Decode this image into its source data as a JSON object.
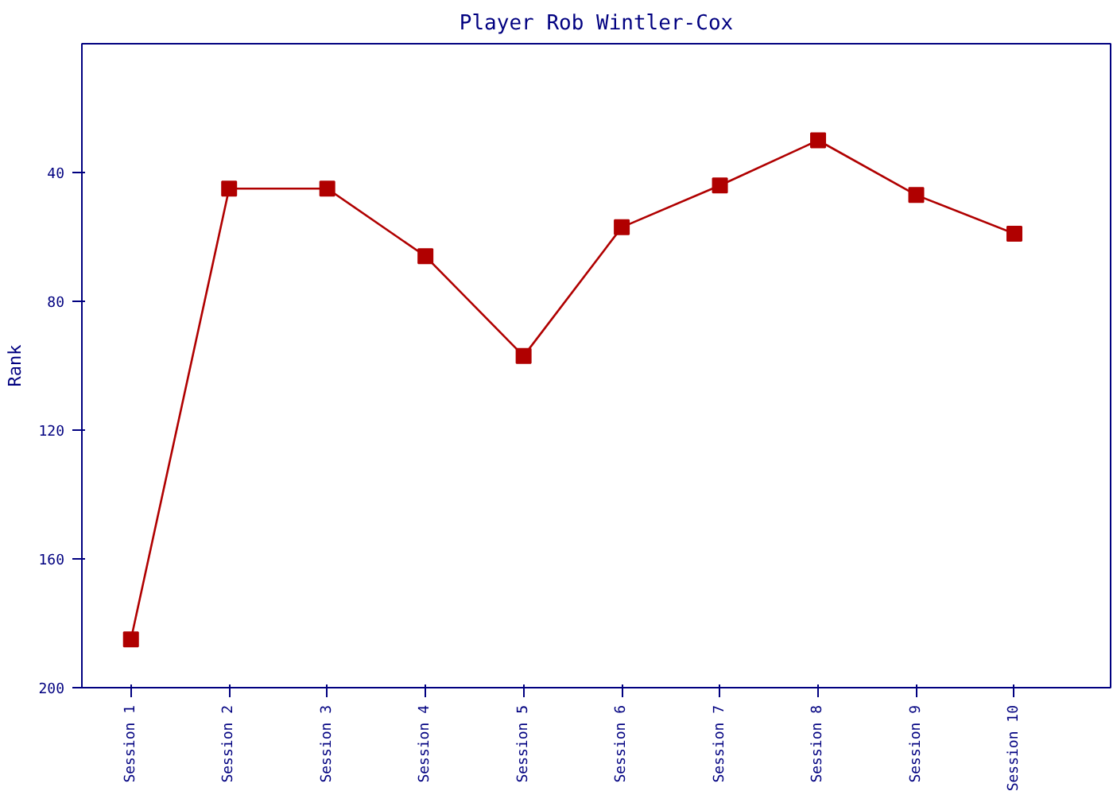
{
  "chart_data": {
    "type": "line",
    "title": "Player Rob Wintler-Cox",
    "ylabel": "Rank",
    "categories": [
      "Session 1",
      "Session 2",
      "Session 3",
      "Session 4",
      "Session 5",
      "Session 6",
      "Session 7",
      "Session 8",
      "Session 9",
      "Session 10"
    ],
    "series": [
      {
        "color": "#b00000",
        "values": [
          185,
          45,
          45,
          66,
          97,
          57,
          44,
          30,
          47,
          59
        ]
      }
    ],
    "ylim": [
      200,
      0
    ],
    "yticks": [
      40,
      80,
      120,
      160,
      200
    ],
    "marker": "square",
    "line_style": "solid"
  }
}
